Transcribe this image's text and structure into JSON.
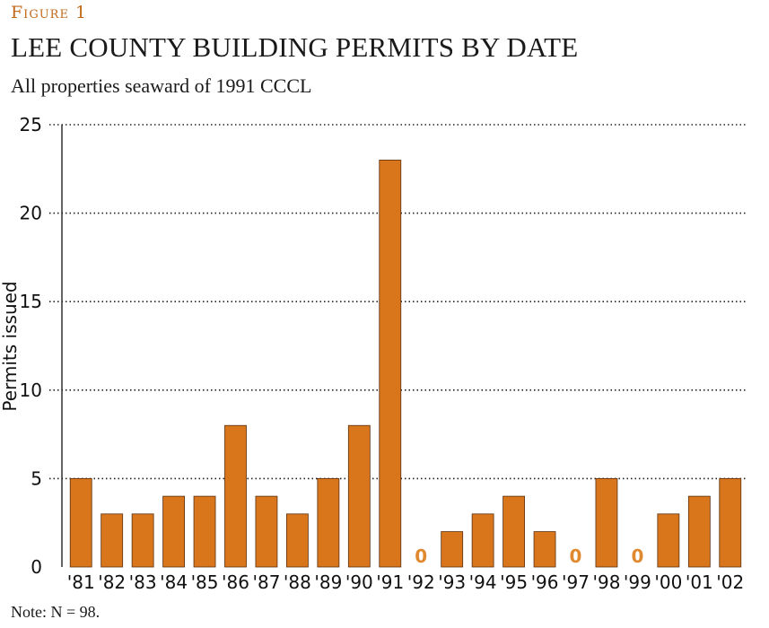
{
  "figure_label": "Figure 1",
  "chart_data": {
    "type": "bar",
    "title": "LEE COUNTY BUILDING PERMITS BY DATE",
    "subtitle": "All properties seaward of 1991 CCCL",
    "ylabel": "Permits issued",
    "xlabel": "",
    "ylim": [
      0,
      25
    ],
    "yticks": [
      "0",
      "5",
      "10",
      "15",
      "20",
      "25"
    ],
    "grid": "dotted horizontal",
    "categories": [
      "'81",
      "'82",
      "'83",
      "'84",
      "'85",
      "'86",
      "'87",
      "'88",
      "'89",
      "'90",
      "'91",
      "'92",
      "'93",
      "'94",
      "'95",
      "'96",
      "'97",
      "'98",
      "'99",
      "'00",
      "'01",
      "'02"
    ],
    "values": [
      5,
      3,
      3,
      4,
      4,
      8,
      4,
      3,
      5,
      8,
      23,
      0,
      2,
      3,
      4,
      2,
      0,
      5,
      0,
      3,
      4,
      5
    ],
    "zero_label": "0",
    "bar_color": "#d9761c",
    "bar_edge_color": "#5a3010",
    "zero_label_color": "#e08a30"
  },
  "note": "Note: N = 98.",
  "colors": {
    "accent": "#c1691b"
  }
}
